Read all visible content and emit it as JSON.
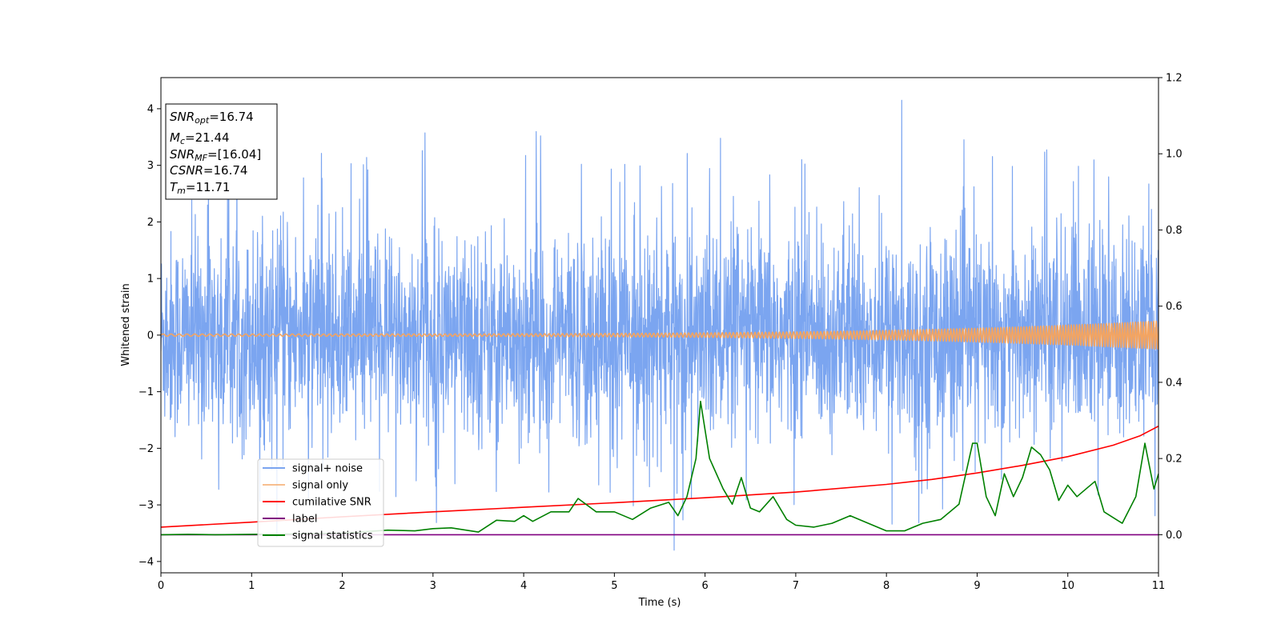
{
  "chart_data": {
    "type": "line",
    "xlabel": "Time (s)",
    "ylabel": "Whitened strain",
    "xlim": [
      0,
      11
    ],
    "ylim_left": [
      -4.2,
      4.55
    ],
    "ylim_right": [
      -0.1,
      1.2
    ],
    "x_ticks": [
      0,
      1,
      2,
      3,
      4,
      5,
      6,
      7,
      8,
      9,
      10,
      11
    ],
    "y_ticks_left": [
      -4,
      -3,
      -2,
      -1,
      0,
      1,
      2,
      3,
      4
    ],
    "y_ticks_right": [
      0.0,
      0.2,
      0.4,
      0.6,
      0.8,
      1.0,
      1.2
    ],
    "y_tick_labels_left": [
      "−4",
      "−3",
      "−2",
      "−1",
      "0",
      "1",
      "2",
      "3",
      "4"
    ],
    "y_tick_labels_right": [
      "0.0",
      "0.2",
      "0.4",
      "0.6",
      "0.8",
      "1.0",
      "1.2"
    ],
    "x_tick_labels": [
      "0",
      "1",
      "2",
      "3",
      "4",
      "5",
      "6",
      "7",
      "8",
      "9",
      "10",
      "11"
    ],
    "legend_position": "lower-left",
    "series": [
      {
        "name": "signal+ noise",
        "axis": "left",
        "color": "#6495ed",
        "style": "noise",
        "amplitude_sd": 0.95,
        "extreme_max": 4.15,
        "extreme_min": -3.8
      },
      {
        "name": "signal only",
        "axis": "left",
        "color": "#f4a460",
        "style": "chirp",
        "amplitude_start": 0.02,
        "amplitude_end": 0.25
      },
      {
        "name": "cumilative SNR",
        "axis": "right",
        "color": "#ff0000",
        "x": [
          0,
          1,
          2,
          3,
          4,
          5,
          6,
          7,
          8,
          8.5,
          9,
          9.5,
          10,
          10.5,
          10.8,
          11
        ],
        "y": [
          0.02,
          0.033,
          0.047,
          0.06,
          0.072,
          0.084,
          0.097,
          0.112,
          0.132,
          0.145,
          0.162,
          0.182,
          0.205,
          0.235,
          0.26,
          0.285
        ]
      },
      {
        "name": "label",
        "axis": "right",
        "color": "#800080",
        "x": [
          0,
          11
        ],
        "y": [
          0.0,
          0.0
        ]
      },
      {
        "name": "signal statistics",
        "axis": "right",
        "color": "#008000",
        "x": [
          0,
          0.3,
          0.6,
          1.0,
          1.5,
          2.0,
          2.5,
          2.8,
          3.0,
          3.2,
          3.5,
          3.7,
          3.9,
          4.0,
          4.1,
          4.3,
          4.5,
          4.6,
          4.8,
          5.0,
          5.2,
          5.4,
          5.6,
          5.7,
          5.8,
          5.9,
          5.95,
          6.05,
          6.2,
          6.3,
          6.4,
          6.5,
          6.6,
          6.75,
          6.9,
          7.0,
          7.2,
          7.4,
          7.6,
          7.8,
          8.0,
          8.2,
          8.4,
          8.6,
          8.8,
          8.95,
          9.0,
          9.1,
          9.2,
          9.3,
          9.4,
          9.5,
          9.6,
          9.7,
          9.8,
          9.9,
          10.0,
          10.1,
          10.2,
          10.3,
          10.4,
          10.6,
          10.75,
          10.85,
          10.95,
          11.0
        ],
        "y": [
          0.0,
          0.001,
          0.0,
          0.001,
          0.002,
          0.004,
          0.012,
          0.01,
          0.016,
          0.018,
          0.007,
          0.038,
          0.035,
          0.05,
          0.035,
          0.06,
          0.06,
          0.095,
          0.06,
          0.06,
          0.04,
          0.07,
          0.085,
          0.05,
          0.1,
          0.2,
          0.35,
          0.2,
          0.12,
          0.08,
          0.15,
          0.07,
          0.06,
          0.1,
          0.04,
          0.025,
          0.02,
          0.03,
          0.05,
          0.03,
          0.01,
          0.01,
          0.03,
          0.04,
          0.08,
          0.24,
          0.24,
          0.1,
          0.05,
          0.16,
          0.1,
          0.15,
          0.23,
          0.21,
          0.17,
          0.09,
          0.13,
          0.1,
          0.12,
          0.14,
          0.06,
          0.03,
          0.1,
          0.24,
          0.12,
          0.16
        ]
      }
    ],
    "info_box": {
      "lines": [
        {
          "main": "SNR",
          "sub": "opt",
          "rest": "=16.74"
        },
        {
          "main": "M",
          "sub": "c",
          "rest": "=21.44"
        },
        {
          "main": "SNR",
          "sub": "MF",
          "rest": "=[16.04]"
        },
        {
          "main": "CSNR",
          "sub": "",
          "rest": "=16.74"
        },
        {
          "main": "T",
          "sub": "m",
          "rest": "=11.71"
        }
      ]
    }
  }
}
